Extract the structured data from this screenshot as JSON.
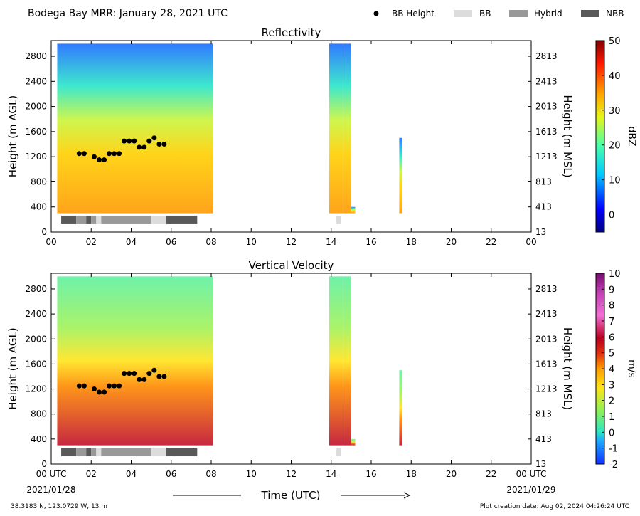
{
  "header": {
    "title": "Bodega Bay MRR:  January 28, 2021 UTC",
    "legend": [
      {
        "label": "BB Height",
        "marker": "dot",
        "color": "#000000"
      },
      {
        "label": "BB",
        "marker": "rect",
        "color": "#dcdcdc"
      },
      {
        "label": "Hybrid",
        "marker": "rect",
        "color": "#999999"
      },
      {
        "label": "NBB",
        "marker": "rect",
        "color": "#595959"
      }
    ]
  },
  "footer": {
    "location": "38.3183 N, 123.0729 W, 13 m",
    "creation": "Plot creation date: Aug 02, 2024 04:26:24 UTC",
    "xaxis_title": "Time (UTC)",
    "start_utc": "00 UTC",
    "start_date": "2021/01/28",
    "end_utc": "00 UTC",
    "end_date": "2021/01/29"
  },
  "chart_data": [
    {
      "type": "heatmap",
      "title": "Reflectivity",
      "ylabel": "Height (m AGL)",
      "ylabel_right": "Height (m MSL)",
      "xlim": [
        0,
        24
      ],
      "ylim": [
        0,
        3050
      ],
      "x_ticks": [
        "00",
        "02",
        "04",
        "06",
        "08",
        "10",
        "12",
        "14",
        "16",
        "18",
        "20",
        "22",
        "00"
      ],
      "x_tick_values": [
        0,
        2,
        4,
        6,
        8,
        10,
        12,
        14,
        16,
        18,
        20,
        22,
        24
      ],
      "y_ticks": [
        0,
        400,
        800,
        1200,
        1600,
        2000,
        2400,
        2800
      ],
      "y_ticks_right": [
        "13",
        "413",
        "813",
        "1213",
        "1613",
        "2013",
        "2413",
        "2813"
      ],
      "colorbar": {
        "label": "dBZ",
        "min": -5,
        "max": 50,
        "ticks": [
          0,
          10,
          20,
          30,
          40,
          50
        ]
      },
      "bb_height": [
        [
          1.4,
          1250
        ],
        [
          1.65,
          1250
        ],
        [
          2.15,
          1200
        ],
        [
          2.4,
          1150
        ],
        [
          2.65,
          1150
        ],
        [
          2.9,
          1250
        ],
        [
          3.15,
          1250
        ],
        [
          3.4,
          1250
        ],
        [
          3.65,
          1450
        ],
        [
          3.9,
          1450
        ],
        [
          4.15,
          1450
        ],
        [
          4.4,
          1350
        ],
        [
          4.65,
          1350
        ],
        [
          4.9,
          1450
        ],
        [
          5.15,
          1500
        ],
        [
          5.4,
          1400
        ],
        [
          5.65,
          1400
        ]
      ],
      "bb_classification": [
        {
          "start": 0.5,
          "end": 1.25,
          "class": "NBB"
        },
        {
          "start": 1.25,
          "end": 1.75,
          "class": "Hybrid"
        },
        {
          "start": 1.75,
          "end": 2.0,
          "class": "NBB"
        },
        {
          "start": 2.0,
          "end": 2.25,
          "class": "Hybrid"
        },
        {
          "start": 2.25,
          "end": 2.5,
          "class": "BB"
        },
        {
          "start": 2.5,
          "end": 5.0,
          "class": "Hybrid"
        },
        {
          "start": 5.0,
          "end": 5.75,
          "class": "BB"
        },
        {
          "start": 5.75,
          "end": 7.3,
          "class": "NBB"
        },
        {
          "start": 14.25,
          "end": 14.5,
          "class": "BB"
        }
      ],
      "echo_spans": [
        {
          "start": 0.3,
          "end": 8.1,
          "top_m": 3000,
          "core_value_dbz": 33
        },
        {
          "start": 13.9,
          "end": 14.6,
          "top_m": 3000,
          "core_value_dbz": 2
        },
        {
          "start": 14.6,
          "end": 15.0,
          "top_m": 3000,
          "core_value_dbz": 5
        },
        {
          "start": 15.0,
          "end": 15.2,
          "top_m": 400,
          "core_value_dbz": 5
        },
        {
          "start": 17.4,
          "end": 17.55,
          "top_m": 1500,
          "core_value_dbz": 0
        }
      ]
    },
    {
      "type": "heatmap",
      "title": "Vertical Velocity",
      "ylabel": "Height (m AGL)",
      "ylabel_right": "Height (m MSL)",
      "xlim": [
        0,
        24
      ],
      "ylim": [
        0,
        3050
      ],
      "x_ticks": [
        "00 UTC",
        "02",
        "04",
        "06",
        "08",
        "10",
        "12",
        "14",
        "16",
        "18",
        "20",
        "22",
        "00 UTC"
      ],
      "x_tick_values": [
        0,
        2,
        4,
        6,
        8,
        10,
        12,
        14,
        16,
        18,
        20,
        22,
        24
      ],
      "y_ticks": [
        0,
        400,
        800,
        1200,
        1600,
        2000,
        2400,
        2800
      ],
      "y_ticks_right": [
        "13",
        "413",
        "813",
        "1213",
        "1613",
        "2013",
        "2413",
        "2813"
      ],
      "colorbar": {
        "label": "m/s",
        "min": -2,
        "max": 10,
        "ticks": [
          -2,
          -1,
          0,
          1,
          2,
          3,
          4,
          5,
          6,
          7,
          8,
          9,
          10
        ]
      },
      "bb_height": [
        [
          1.4,
          1250
        ],
        [
          1.65,
          1250
        ],
        [
          2.15,
          1200
        ],
        [
          2.4,
          1150
        ],
        [
          2.65,
          1150
        ],
        [
          2.9,
          1250
        ],
        [
          3.15,
          1250
        ],
        [
          3.4,
          1250
        ],
        [
          3.65,
          1450
        ],
        [
          3.9,
          1450
        ],
        [
          4.15,
          1450
        ],
        [
          4.4,
          1350
        ],
        [
          4.65,
          1350
        ],
        [
          4.9,
          1450
        ],
        [
          5.15,
          1500
        ],
        [
          5.4,
          1400
        ],
        [
          5.65,
          1400
        ]
      ],
      "bb_classification": [
        {
          "start": 0.5,
          "end": 1.25,
          "class": "NBB"
        },
        {
          "start": 1.25,
          "end": 1.75,
          "class": "Hybrid"
        },
        {
          "start": 1.75,
          "end": 2.0,
          "class": "NBB"
        },
        {
          "start": 2.0,
          "end": 2.25,
          "class": "Hybrid"
        },
        {
          "start": 2.25,
          "end": 2.5,
          "class": "BB"
        },
        {
          "start": 2.5,
          "end": 5.0,
          "class": "Hybrid"
        },
        {
          "start": 5.0,
          "end": 5.75,
          "class": "BB"
        },
        {
          "start": 5.75,
          "end": 7.3,
          "class": "NBB"
        },
        {
          "start": 14.25,
          "end": 14.5,
          "class": "BB"
        }
      ],
      "echo_spans": [
        {
          "start": 0.3,
          "end": 8.1,
          "top_m": 3000,
          "core_value_ms": 6
        },
        {
          "start": 13.9,
          "end": 14.6,
          "top_m": 3000,
          "core_value_ms": 1
        },
        {
          "start": 14.6,
          "end": 15.0,
          "top_m": 3000,
          "core_value_ms": 2
        },
        {
          "start": 15.0,
          "end": 15.2,
          "top_m": 400,
          "core_value_ms": 3
        },
        {
          "start": 17.4,
          "end": 17.55,
          "top_m": 1500,
          "core_value_ms": 2
        }
      ]
    }
  ]
}
